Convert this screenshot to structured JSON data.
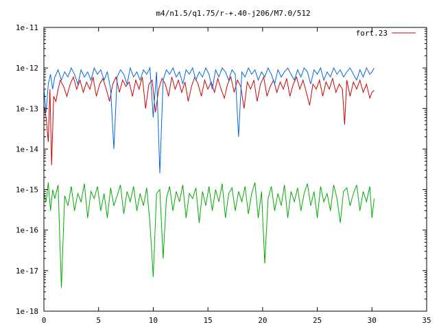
{
  "chart_data": {
    "type": "line",
    "title": "m4/n1.5/q1.75/r-+.40-j206/M7.0/512",
    "xlabel": "",
    "ylabel": "",
    "xlim": [
      0,
      35
    ],
    "ylim": [
      1e-18,
      1e-11
    ],
    "yscale": "log",
    "x_ticks": [
      0,
      5,
      10,
      15,
      20,
      25,
      30,
      35
    ],
    "x_tick_labels": [
      "0",
      "5",
      "10",
      "15",
      "20",
      "25",
      "30",
      "35"
    ],
    "y_ticks": [
      1e-18,
      1e-17,
      1e-16,
      1e-15,
      1e-14,
      1e-13,
      1e-12,
      1e-11
    ],
    "y_tick_labels": [
      "1e-18",
      "1e-17",
      "1e-16",
      "1e-15",
      "1e-14",
      "1e-13",
      "1e-12",
      "1e-11"
    ],
    "grid": false,
    "legend": {
      "position": "top-right",
      "entries": [
        "fort.23"
      ]
    },
    "series": [
      {
        "name": "fort.23",
        "color": "#cc0000",
        "x": [
          0,
          0.2,
          0.4,
          0.55,
          0.7,
          0.9,
          1.1,
          1.3,
          1.5,
          1.8,
          2.1,
          2.4,
          2.7,
          3.0,
          3.3,
          3.6,
          3.9,
          4.2,
          4.5,
          4.8,
          5.1,
          5.4,
          5.7,
          6.0,
          6.3,
          6.6,
          6.9,
          7.2,
          7.5,
          7.8,
          8.1,
          8.4,
          8.7,
          9.0,
          9.3,
          9.6,
          9.9,
          10.2,
          10.5,
          10.8,
          11.1,
          11.4,
          11.7,
          12.0,
          12.3,
          12.6,
          12.9,
          13.2,
          13.5,
          13.8,
          14.1,
          14.4,
          14.7,
          15.0,
          15.3,
          15.6,
          15.9,
          16.2,
          16.5,
          16.8,
          17.1,
          17.4,
          17.7,
          18.0,
          18.3,
          18.6,
          18.9,
          19.2,
          19.5,
          19.8,
          20.1,
          20.4,
          20.7,
          21.0,
          21.3,
          21.6,
          21.9,
          22.2,
          22.5,
          22.8,
          23.1,
          23.4,
          23.7,
          24.0,
          24.3,
          24.6,
          24.9,
          25.2,
          25.5,
          25.8,
          26.1,
          26.4,
          26.7,
          27.0,
          27.3,
          27.5,
          27.7,
          28.0,
          28.3,
          28.6,
          28.9,
          29.2,
          29.5,
          29.8,
          30.0,
          30.2
        ],
        "y": [
          1.2e-13,
          6e-14,
          1.5e-14,
          3e-13,
          4e-15,
          2e-13,
          1.5e-13,
          3e-13,
          5e-13,
          3.5e-13,
          2e-13,
          4e-13,
          6e-13,
          3e-13,
          5e-13,
          2.5e-13,
          4.5e-13,
          3e-13,
          6e-13,
          2e-13,
          4e-13,
          5.5e-13,
          3e-13,
          1.5e-13,
          4e-13,
          6e-13,
          2.5e-13,
          5e-13,
          3.5e-13,
          4.5e-13,
          2e-13,
          5e-13,
          3e-13,
          6e-13,
          1e-13,
          4e-13,
          5e-13,
          8e-14,
          3e-13,
          5.5e-13,
          4e-13,
          2e-13,
          6e-13,
          3e-13,
          5e-13,
          2.5e-13,
          4.5e-13,
          1.5e-13,
          3.5e-13,
          6e-13,
          4e-13,
          2e-13,
          5e-13,
          3e-13,
          4.5e-13,
          2.5e-13,
          5.5e-13,
          3e-13,
          1.8e-13,
          4e-13,
          6e-13,
          2.5e-13,
          5e-13,
          3.5e-13,
          1e-13,
          4.5e-13,
          3e-13,
          5e-13,
          1.5e-13,
          4e-13,
          6e-13,
          2e-13,
          3.5e-13,
          5e-13,
          2.5e-13,
          4.5e-13,
          3e-13,
          5.5e-13,
          2e-13,
          4e-13,
          6e-13,
          3e-13,
          5e-13,
          2.5e-13,
          1.2e-13,
          4e-13,
          3e-13,
          5e-13,
          2e-13,
          4.5e-13,
          3e-13,
          5.5e-13,
          2.5e-13,
          4e-13,
          3e-13,
          4e-14,
          5e-13,
          2e-13,
          4.5e-13,
          3e-13,
          5e-13,
          2.5e-13,
          4e-13,
          1.8e-13,
          2.5e-13,
          2.8e-13
        ]
      },
      {
        "name": "",
        "color": "#0066dd",
        "x": [
          0,
          0.2,
          0.4,
          0.6,
          0.8,
          1.0,
          1.3,
          1.6,
          1.9,
          2.2,
          2.5,
          2.8,
          3.1,
          3.4,
          3.7,
          4.0,
          4.3,
          4.6,
          4.9,
          5.2,
          5.5,
          5.8,
          6.1,
          6.4,
          6.7,
          7.0,
          7.3,
          7.6,
          7.9,
          8.2,
          8.5,
          8.8,
          9.1,
          9.4,
          9.7,
          10.0,
          10.3,
          10.6,
          10.9,
          11.2,
          11.5,
          11.8,
          12.1,
          12.4,
          12.7,
          13.0,
          13.3,
          13.6,
          13.9,
          14.2,
          14.5,
          14.8,
          15.1,
          15.4,
          15.7,
          16.0,
          16.3,
          16.6,
          16.9,
          17.2,
          17.5,
          17.8,
          18.1,
          18.4,
          18.7,
          19.0,
          19.3,
          19.6,
          19.9,
          20.2,
          20.5,
          20.8,
          21.1,
          21.4,
          21.7,
          22.0,
          22.3,
          22.6,
          22.9,
          23.2,
          23.5,
          23.8,
          24.1,
          24.4,
          24.7,
          25.0,
          25.3,
          25.6,
          25.9,
          26.2,
          26.5,
          26.8,
          27.1,
          27.4,
          27.7,
          28.0,
          28.3,
          28.6,
          28.9,
          29.2,
          29.5,
          29.8,
          30.0,
          30.2
        ],
        "y": [
          3e-13,
          8e-14,
          4e-13,
          7e-13,
          3e-13,
          6e-13,
          9e-13,
          5e-13,
          8e-13,
          6e-13,
          1e-12,
          7e-13,
          4e-13,
          9e-13,
          6e-13,
          8e-13,
          5e-13,
          1e-12,
          7e-13,
          9e-13,
          5e-13,
          8e-13,
          3e-13,
          1e-14,
          6e-13,
          9e-13,
          7e-13,
          4e-13,
          1e-12,
          6e-13,
          8e-13,
          5e-13,
          9e-13,
          7e-13,
          1e-12,
          6e-14,
          8e-13,
          2.5e-15,
          5e-13,
          9e-13,
          7e-13,
          1e-12,
          6e-13,
          8e-13,
          4e-13,
          9e-13,
          7e-13,
          1e-12,
          5e-13,
          8e-13,
          6e-13,
          1e-12,
          7e-13,
          3e-13,
          9e-13,
          6e-13,
          1e-12,
          8e-13,
          5e-13,
          9e-13,
          7e-13,
          2e-14,
          8e-13,
          6e-13,
          1e-12,
          7e-13,
          9e-13,
          5e-13,
          8e-13,
          6e-13,
          1e-12,
          7e-13,
          4e-13,
          9e-13,
          6e-13,
          8e-13,
          1e-12,
          7e-13,
          5e-13,
          9e-13,
          6e-13,
          1e-12,
          8e-13,
          4e-13,
          9e-13,
          7e-13,
          1e-12,
          5e-13,
          8e-13,
          6e-13,
          1e-12,
          7e-13,
          9e-13,
          6e-13,
          8e-13,
          1e-12,
          7e-13,
          5e-13,
          9e-13,
          6e-13,
          1e-12,
          7e-13,
          8e-13,
          1e-12
        ]
      },
      {
        "name": "",
        "color": "#00aa00",
        "x": [
          0,
          0.2,
          0.4,
          0.6,
          0.8,
          1.0,
          1.3,
          1.6,
          1.9,
          2.2,
          2.5,
          2.8,
          3.1,
          3.4,
          3.7,
          4.0,
          4.3,
          4.6,
          4.9,
          5.2,
          5.5,
          5.8,
          6.1,
          6.4,
          6.7,
          7.0,
          7.3,
          7.6,
          7.9,
          8.2,
          8.5,
          8.8,
          9.1,
          9.4,
          9.7,
          10.0,
          10.3,
          10.6,
          10.9,
          11.2,
          11.5,
          11.8,
          12.1,
          12.4,
          12.7,
          13.0,
          13.3,
          13.6,
          13.9,
          14.2,
          14.5,
          14.8,
          15.1,
          15.4,
          15.7,
          16.0,
          16.3,
          16.6,
          16.9,
          17.2,
          17.5,
          17.8,
          18.1,
          18.4,
          18.7,
          19.0,
          19.3,
          19.6,
          19.9,
          20.2,
          20.5,
          20.8,
          21.1,
          21.4,
          21.7,
          22.0,
          22.3,
          22.6,
          22.9,
          23.2,
          23.5,
          23.8,
          24.1,
          24.4,
          24.7,
          25.0,
          25.3,
          25.6,
          25.9,
          26.2,
          26.5,
          26.8,
          27.1,
          27.4,
          27.7,
          28.0,
          28.3,
          28.6,
          28.9,
          29.2,
          29.5,
          29.8,
          30.0,
          30.2
        ],
        "y": [
          8e-16,
          5e-16,
          1.5e-15,
          3e-16,
          1e-15,
          6e-16,
          1.3e-15,
          3.8e-18,
          7e-16,
          4e-16,
          1.2e-15,
          3e-16,
          8e-16,
          5e-16,
          1.4e-15,
          2e-16,
          9e-16,
          6e-16,
          1.2e-15,
          3e-16,
          8e-16,
          2e-16,
          1.1e-15,
          4e-16,
          7e-16,
          1.3e-15,
          2.5e-16,
          9e-16,
          5e-16,
          1.2e-15,
          3e-16,
          8e-16,
          4e-16,
          1.1e-15,
          1.5e-16,
          7e-18,
          8e-16,
          1e-15,
          2e-17,
          6e-16,
          1.2e-15,
          3e-16,
          9e-16,
          5e-16,
          1.3e-15,
          2e-16,
          8e-16,
          6e-16,
          1.1e-15,
          1.5e-16,
          9e-16,
          4e-16,
          1.2e-15,
          3e-16,
          1e-15,
          5e-16,
          1.4e-15,
          2e-16,
          8e-16,
          1.1e-15,
          3e-16,
          9e-16,
          5e-16,
          1.2e-15,
          2.5e-16,
          8e-16,
          1.5e-15,
          2e-16,
          9e-16,
          1.5e-17,
          6e-16,
          1.2e-15,
          3e-16,
          8e-16,
          4e-16,
          1.3e-15,
          2e-16,
          9e-16,
          5e-16,
          1.1e-15,
          3e-16,
          8e-16,
          1.4e-15,
          4e-16,
          9e-16,
          2e-16,
          1.2e-15,
          5e-16,
          8e-16,
          3e-16,
          1.3e-15,
          6e-16,
          1.5e-16,
          9e-16,
          1.1e-15,
          4e-16,
          8e-16,
          1.3e-15,
          3e-16,
          9e-16,
          5e-16,
          1.2e-15,
          2e-16,
          6e-16
        ]
      }
    ]
  }
}
